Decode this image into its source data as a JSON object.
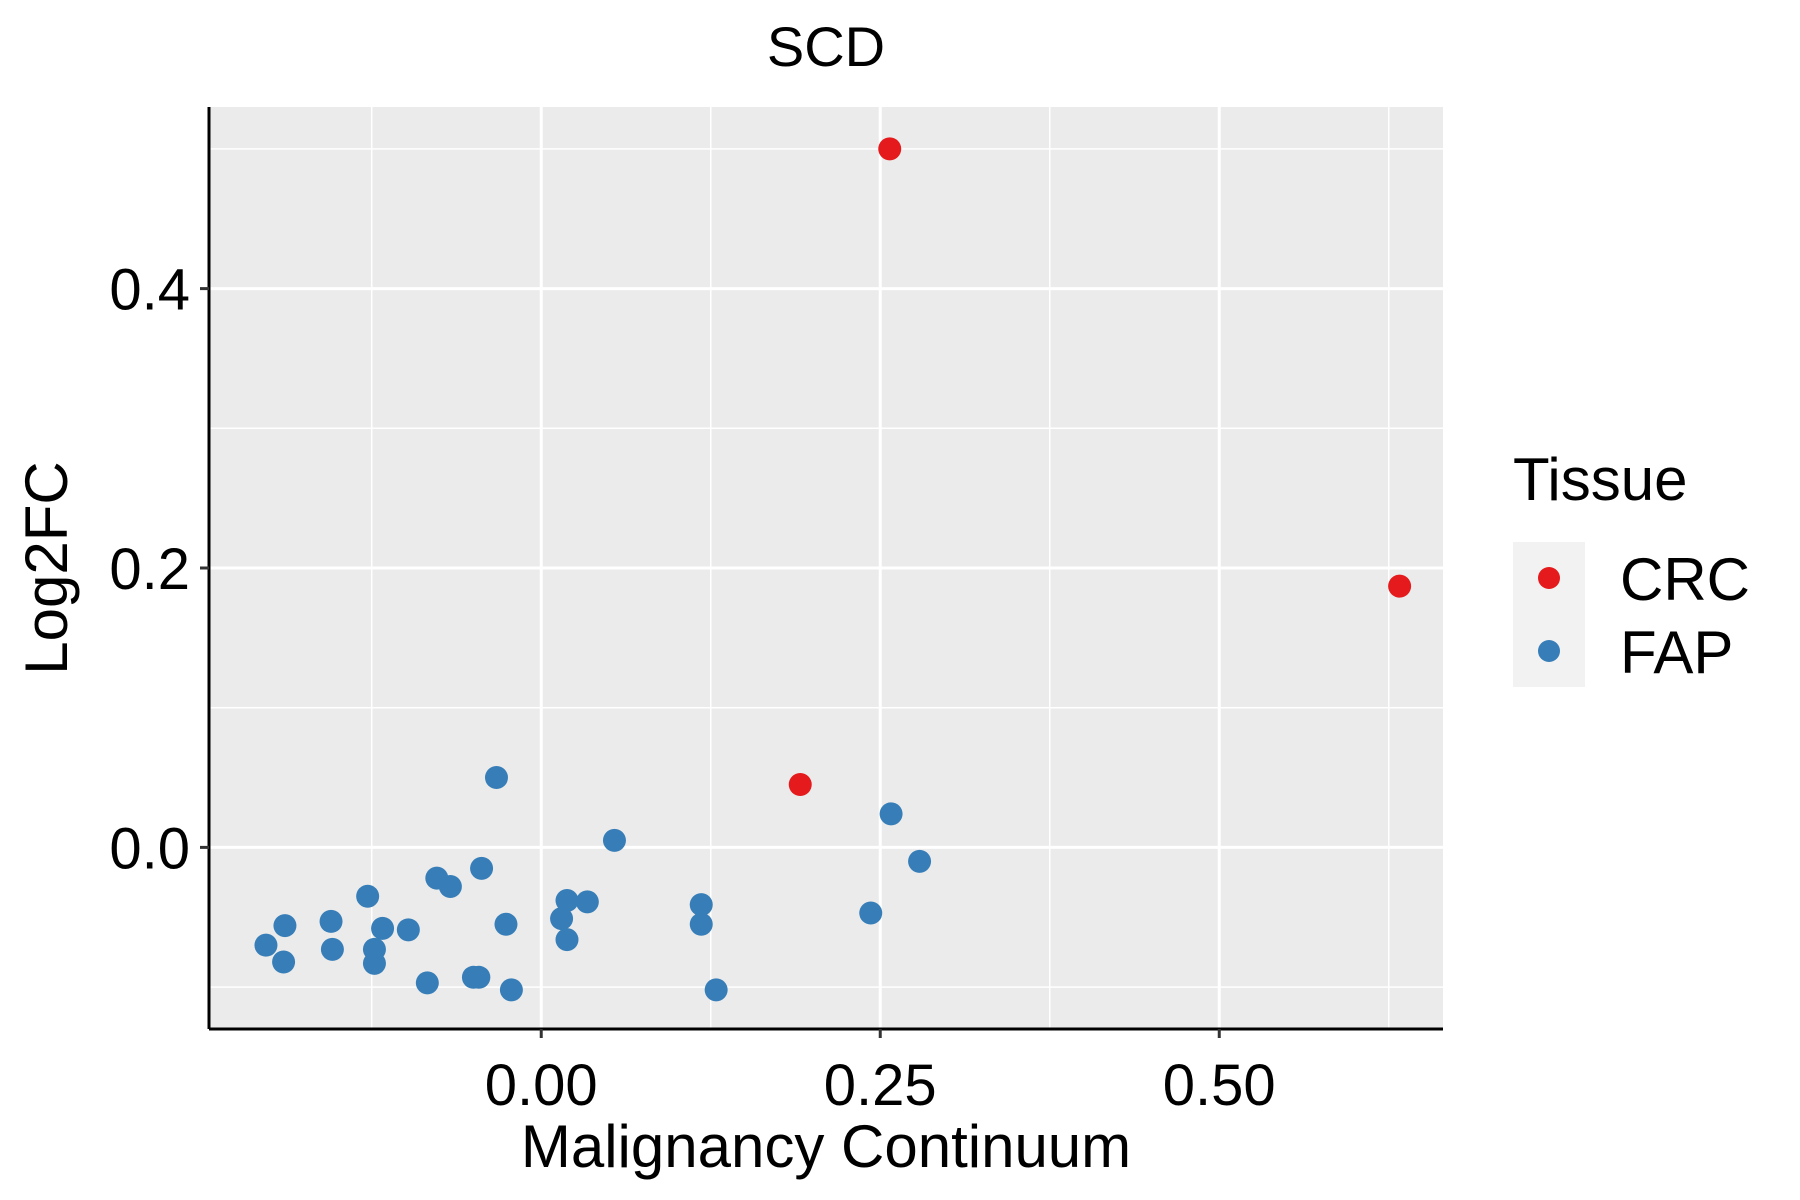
{
  "chart_data": {
    "type": "scatter",
    "title": "SCD",
    "xlabel": "Malignancy Continuum",
    "ylabel": "Log2FC",
    "xlim": [
      -0.245,
      0.665
    ],
    "ylim": [
      -0.13,
      0.53
    ],
    "xticks": [
      0.0,
      0.25,
      0.5
    ],
    "xtick_labels": [
      "0.00",
      "0.25",
      "0.50"
    ],
    "yticks": [
      0.0,
      0.2,
      0.4
    ],
    "ytick_labels": [
      "0.0",
      "0.2",
      "0.4"
    ],
    "grid": true,
    "legend": {
      "title": "Tissue",
      "position": "right",
      "entries": [
        {
          "label": "CRC",
          "color": "#E41A1C"
        },
        {
          "label": "FAP",
          "color": "#377EB8"
        }
      ]
    },
    "series": [
      {
        "name": "CRC",
        "color": "#E41A1C",
        "points": [
          {
            "x": 0.257,
            "y": 0.5
          },
          {
            "x": 0.633,
            "y": 0.187
          },
          {
            "x": 0.191,
            "y": 0.045
          }
        ]
      },
      {
        "name": "FAP",
        "color": "#377EB8",
        "points": [
          {
            "x": -0.033,
            "y": 0.05
          },
          {
            "x": 0.054,
            "y": 0.005
          },
          {
            "x": 0.258,
            "y": 0.024
          },
          {
            "x": 0.279,
            "y": -0.01
          },
          {
            "x": -0.044,
            "y": -0.015
          },
          {
            "x": -0.077,
            "y": -0.022
          },
          {
            "x": -0.067,
            "y": -0.028
          },
          {
            "x": -0.128,
            "y": -0.035
          },
          {
            "x": 0.019,
            "y": -0.038
          },
          {
            "x": 0.034,
            "y": -0.039
          },
          {
            "x": 0.118,
            "y": -0.041
          },
          {
            "x": 0.243,
            "y": -0.047
          },
          {
            "x": 0.015,
            "y": -0.051
          },
          {
            "x": -0.155,
            "y": -0.053
          },
          {
            "x": -0.189,
            "y": -0.056
          },
          {
            "x": -0.026,
            "y": -0.055
          },
          {
            "x": 0.118,
            "y": -0.055
          },
          {
            "x": -0.117,
            "y": -0.058
          },
          {
            "x": -0.098,
            "y": -0.059
          },
          {
            "x": 0.019,
            "y": -0.066
          },
          {
            "x": -0.203,
            "y": -0.07
          },
          {
            "x": -0.154,
            "y": -0.073
          },
          {
            "x": -0.123,
            "y": -0.073
          },
          {
            "x": -0.19,
            "y": -0.082
          },
          {
            "x": -0.123,
            "y": -0.083
          },
          {
            "x": -0.05,
            "y": -0.093
          },
          {
            "x": -0.046,
            "y": -0.093
          },
          {
            "x": -0.084,
            "y": -0.097
          },
          {
            "x": -0.022,
            "y": -0.102
          },
          {
            "x": 0.129,
            "y": -0.102
          }
        ]
      }
    ]
  }
}
